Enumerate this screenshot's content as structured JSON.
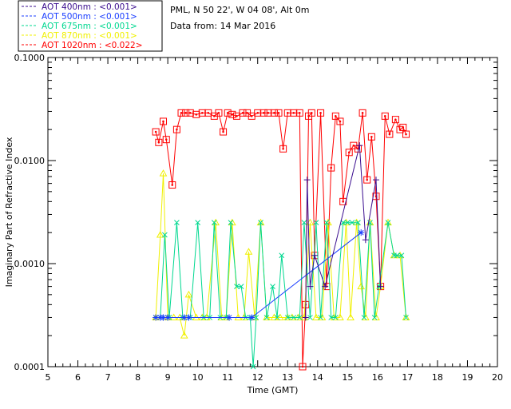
{
  "header": {
    "site": "PML, N 50 22', W 04 08', Alt 0m",
    "date": "Data from: 14 Mar 2016"
  },
  "chart_data": {
    "type": "line",
    "xlabel": "Time (GMT)",
    "ylabel": "Imaginary Part of Refractive Index",
    "xlim": [
      5,
      20
    ],
    "ylim": [
      0.0001,
      0.1
    ],
    "yscale": "log",
    "xticks": [
      5,
      6,
      7,
      8,
      9,
      10,
      11,
      12,
      13,
      14,
      15,
      16,
      17,
      18,
      19,
      20
    ],
    "yticks": [
      {
        "value": 0.0001,
        "label": "0.0001"
      },
      {
        "value": 0.001,
        "label": "0.0010"
      },
      {
        "value": 0.01,
        "label": "0.0100"
      },
      {
        "value": 0.1,
        "label": "0.1000"
      }
    ],
    "legend_position": "top-left-outside",
    "series": [
      {
        "name": "AOT  400nm : <0.001>",
        "color": "#3a0d8f",
        "marker": "plus",
        "points": [
          [
            13.6,
            0.0003
          ],
          [
            13.65,
            0.0065
          ],
          [
            13.75,
            0.0006
          ],
          [
            13.9,
            0.0012
          ],
          [
            14.25,
            0.0006
          ],
          [
            15.4,
            0.014
          ],
          [
            15.6,
            0.0017
          ],
          [
            15.95,
            0.0065
          ],
          [
            16.1,
            0.0006
          ]
        ]
      },
      {
        "name": "AOT  500nm : <0.001>",
        "color": "#1a3dff",
        "marker": "star",
        "points": [
          [
            8.6,
            0.0003
          ],
          [
            8.75,
            0.0003
          ],
          [
            8.85,
            0.0003
          ],
          [
            9.0,
            0.0003
          ],
          [
            9.55,
            0.0003
          ],
          [
            9.7,
            0.0003
          ],
          [
            11.05,
            0.0003
          ],
          [
            11.8,
            0.0003
          ],
          [
            15.45,
            0.002
          ]
        ]
      },
      {
        "name": "AOT  675nm : <0.001>",
        "color": "#00d890",
        "marker": "x",
        "points": [
          [
            8.6,
            0.0003
          ],
          [
            8.75,
            0.0003
          ],
          [
            8.9,
            0.0019
          ],
          [
            9.05,
            0.0003
          ],
          [
            9.3,
            0.0025
          ],
          [
            9.5,
            0.0003
          ],
          [
            9.75,
            0.0003
          ],
          [
            10.0,
            0.0025
          ],
          [
            10.2,
            0.0003
          ],
          [
            10.4,
            0.0003
          ],
          [
            10.55,
            0.0025
          ],
          [
            10.75,
            0.0003
          ],
          [
            10.95,
            0.0003
          ],
          [
            11.1,
            0.0025
          ],
          [
            11.3,
            0.0006
          ],
          [
            11.45,
            0.0006
          ],
          [
            11.6,
            0.0003
          ],
          [
            11.75,
            0.0003
          ],
          [
            11.85,
            0.0001
          ],
          [
            11.95,
            0.0003
          ],
          [
            12.1,
            0.0025
          ],
          [
            12.3,
            0.0003
          ],
          [
            12.5,
            0.0006
          ],
          [
            12.65,
            0.0003
          ],
          [
            12.8,
            0.0012
          ],
          [
            13.0,
            0.0003
          ],
          [
            13.2,
            0.0003
          ],
          [
            13.4,
            0.0003
          ],
          [
            13.55,
            0.0025
          ],
          [
            13.75,
            0.0003
          ],
          [
            13.95,
            0.0025
          ],
          [
            14.1,
            0.0003
          ],
          [
            14.3,
            0.0025
          ],
          [
            14.45,
            0.0003
          ],
          [
            14.6,
            0.0003
          ],
          [
            14.85,
            0.0025
          ],
          [
            15.0,
            0.0025
          ],
          [
            15.15,
            0.0025
          ],
          [
            15.35,
            0.0025
          ],
          [
            15.55,
            0.0003
          ],
          [
            15.75,
            0.0025
          ],
          [
            15.9,
            0.0003
          ],
          [
            16.05,
            0.0006
          ],
          [
            16.35,
            0.0025
          ],
          [
            16.55,
            0.0012
          ],
          [
            16.65,
            0.0012
          ],
          [
            16.8,
            0.0012
          ],
          [
            16.95,
            0.0003
          ]
        ]
      },
      {
        "name": "AOT  870nm : <0.001>",
        "color": "#f0f000",
        "marker": "triangle",
        "points": [
          [
            8.6,
            0.0003
          ],
          [
            8.75,
            0.0019
          ],
          [
            8.85,
            0.0075
          ],
          [
            9.0,
            0.0003
          ],
          [
            9.2,
            0.0003
          ],
          [
            9.4,
            0.0003
          ],
          [
            9.55,
            0.0002
          ],
          [
            9.7,
            0.0005
          ],
          [
            9.95,
            0.0003
          ],
          [
            10.15,
            0.0003
          ],
          [
            10.3,
            0.0003
          ],
          [
            10.6,
            0.0025
          ],
          [
            10.8,
            0.0003
          ],
          [
            10.95,
            0.0003
          ],
          [
            11.15,
            0.0025
          ],
          [
            11.35,
            0.0003
          ],
          [
            11.55,
            0.0003
          ],
          [
            11.7,
            0.0013
          ],
          [
            11.9,
            0.0003
          ],
          [
            12.1,
            0.0025
          ],
          [
            12.3,
            0.0003
          ],
          [
            12.55,
            0.0003
          ],
          [
            12.75,
            0.0003
          ],
          [
            13.0,
            0.0003
          ],
          [
            13.15,
            0.0003
          ],
          [
            13.35,
            0.0003
          ],
          [
            13.55,
            0.0003
          ],
          [
            13.75,
            0.0025
          ],
          [
            13.95,
            0.0003
          ],
          [
            14.15,
            0.0003
          ],
          [
            14.35,
            0.0025
          ],
          [
            14.55,
            0.0003
          ],
          [
            14.75,
            0.0003
          ],
          [
            14.95,
            0.0025
          ],
          [
            15.1,
            0.0003
          ],
          [
            15.3,
            0.0025
          ],
          [
            15.45,
            0.0006
          ],
          [
            15.6,
            0.0003
          ],
          [
            15.75,
            0.0025
          ],
          [
            15.95,
            0.0003
          ],
          [
            16.1,
            0.0006
          ],
          [
            16.35,
            0.0025
          ],
          [
            16.55,
            0.0012
          ],
          [
            16.75,
            0.0012
          ],
          [
            16.95,
            0.0003
          ]
        ]
      },
      {
        "name": "AOT 1020nm : <0.022>",
        "color": "#ff0000",
        "marker": "square",
        "points": [
          [
            8.6,
            0.019
          ],
          [
            8.7,
            0.015
          ],
          [
            8.85,
            0.024
          ],
          [
            8.95,
            0.016
          ],
          [
            9.15,
            0.0058
          ],
          [
            9.3,
            0.02
          ],
          [
            9.45,
            0.029
          ],
          [
            9.6,
            0.029
          ],
          [
            9.75,
            0.029
          ],
          [
            9.95,
            0.028
          ],
          [
            10.15,
            0.029
          ],
          [
            10.35,
            0.029
          ],
          [
            10.55,
            0.027
          ],
          [
            10.7,
            0.029
          ],
          [
            10.85,
            0.019
          ],
          [
            11.0,
            0.029
          ],
          [
            11.15,
            0.028
          ],
          [
            11.3,
            0.027
          ],
          [
            11.5,
            0.029
          ],
          [
            11.65,
            0.029
          ],
          [
            11.8,
            0.027
          ],
          [
            12.0,
            0.029
          ],
          [
            12.2,
            0.029
          ],
          [
            12.35,
            0.029
          ],
          [
            12.55,
            0.029
          ],
          [
            12.7,
            0.029
          ],
          [
            12.85,
            0.013
          ],
          [
            13.0,
            0.029
          ],
          [
            13.2,
            0.029
          ],
          [
            13.4,
            0.029
          ],
          [
            13.5,
            0.0001
          ],
          [
            13.6,
            0.0004
          ],
          [
            13.7,
            0.027
          ],
          [
            13.8,
            0.029
          ],
          [
            13.9,
            0.0012
          ],
          [
            14.1,
            0.029
          ],
          [
            14.3,
            0.0006
          ],
          [
            14.45,
            0.0085
          ],
          [
            14.6,
            0.027
          ],
          [
            14.75,
            0.024
          ],
          [
            14.85,
            0.004
          ],
          [
            15.05,
            0.012
          ],
          [
            15.2,
            0.014
          ],
          [
            15.35,
            0.013
          ],
          [
            15.5,
            0.029
          ],
          [
            15.65,
            0.0065
          ],
          [
            15.8,
            0.017
          ],
          [
            15.95,
            0.0045
          ],
          [
            16.1,
            0.0006
          ],
          [
            16.25,
            0.027
          ],
          [
            16.4,
            0.018
          ],
          [
            16.6,
            0.025
          ],
          [
            16.75,
            0.02
          ],
          [
            16.85,
            0.021
          ],
          [
            16.95,
            0.018
          ]
        ]
      }
    ]
  }
}
